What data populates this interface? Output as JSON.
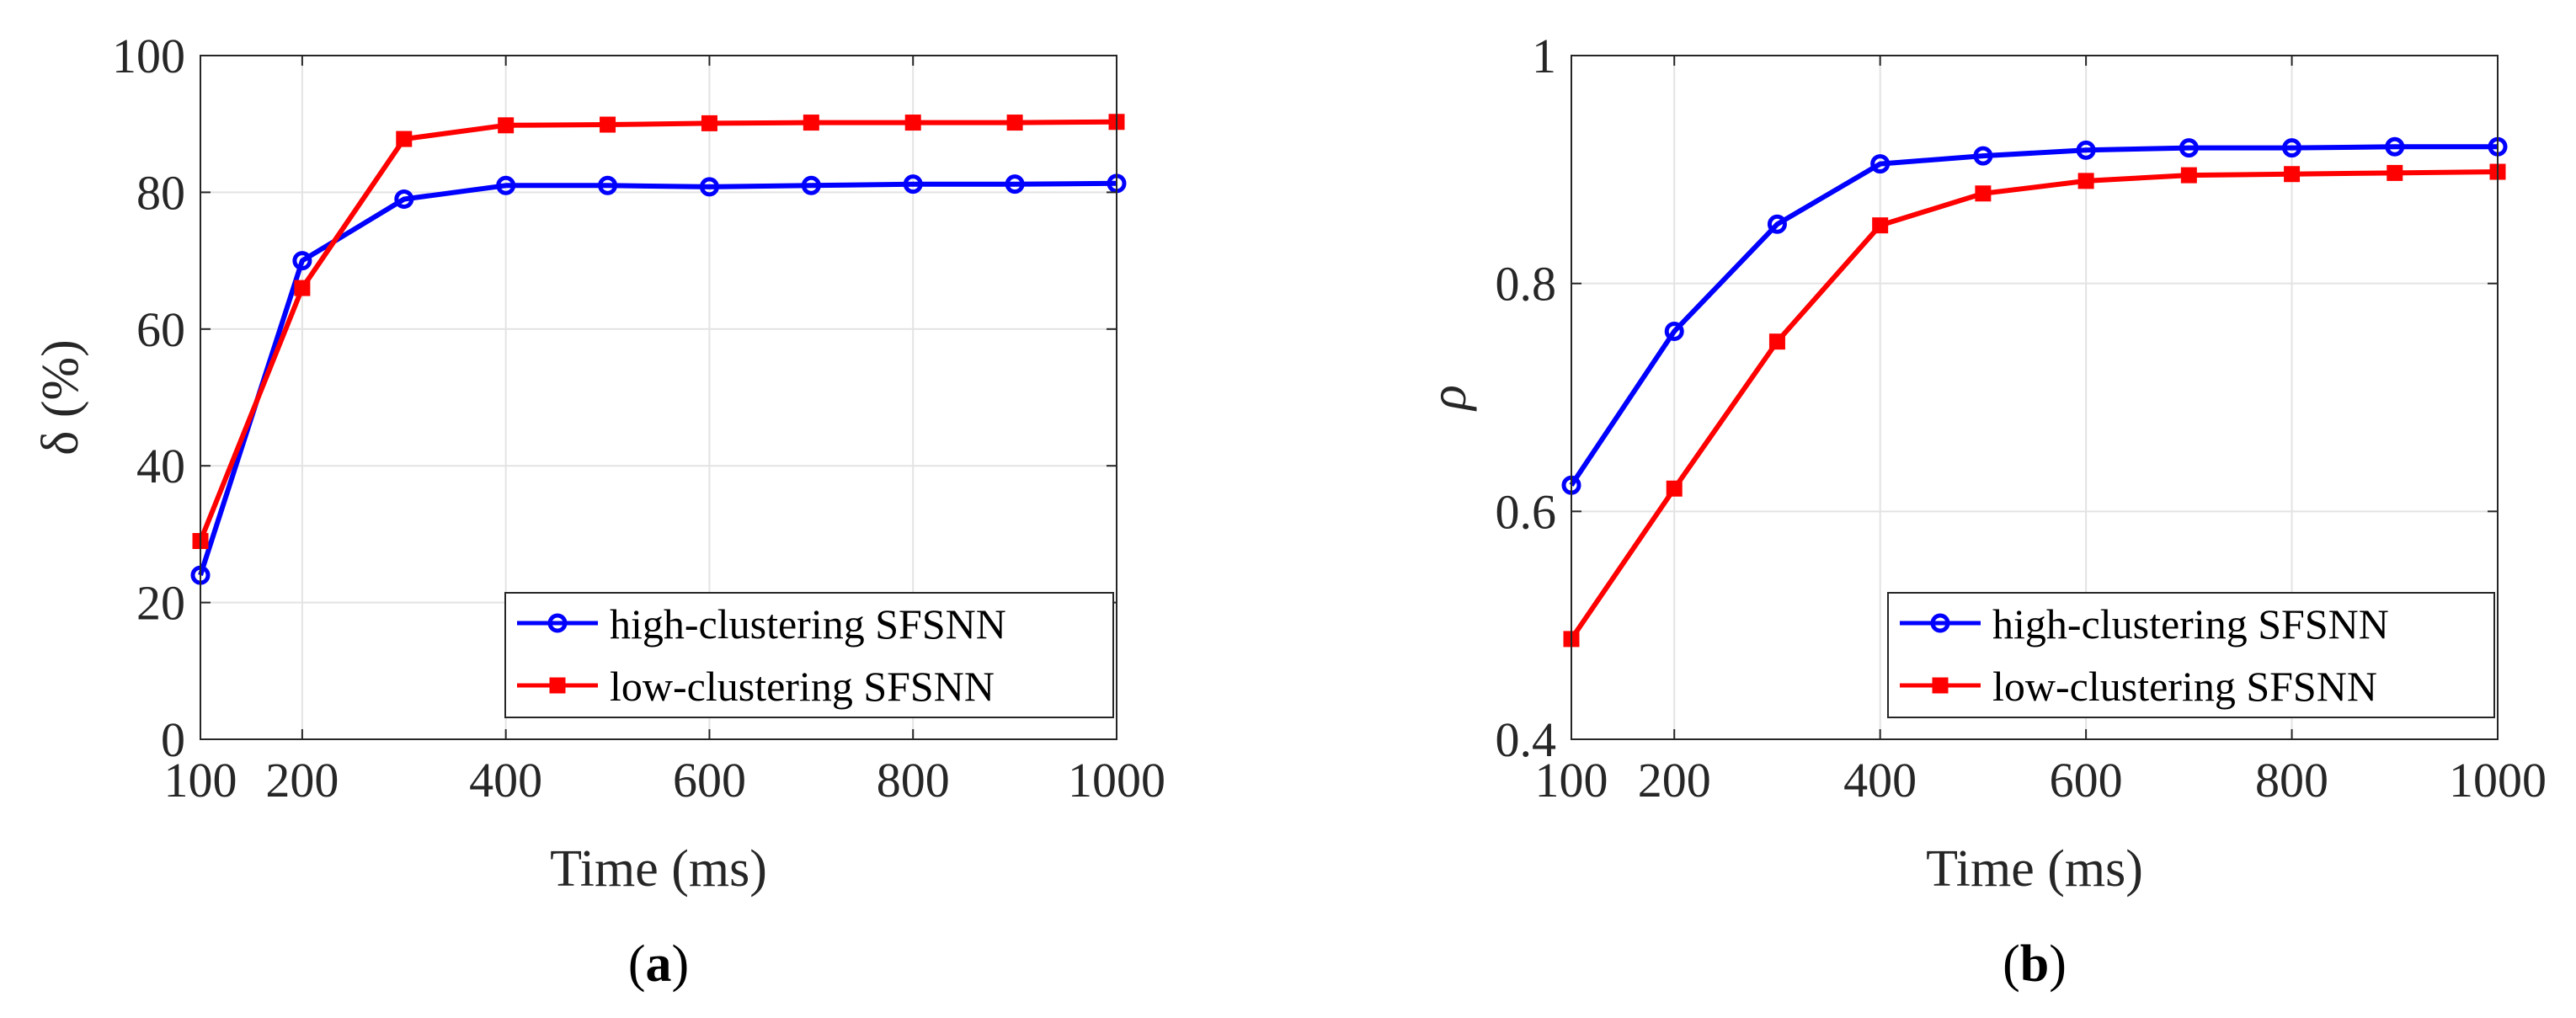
{
  "chart_data": [
    {
      "type": "line",
      "panel_label": "(a)",
      "panel_label_parts": [
        "(",
        "a",
        ")"
      ],
      "xlabel": "Time (ms)",
      "ylabel": "δ (%)",
      "xlim": [
        100,
        1000
      ],
      "ylim": [
        0,
        100
      ],
      "xticks": [
        "100",
        "200",
        "400",
        "600",
        "800",
        "1000"
      ],
      "yticks": [
        "0",
        "20",
        "40",
        "60",
        "80",
        "100"
      ],
      "grid": true,
      "legend_position": "bottom-right",
      "x": [
        100,
        200,
        300,
        400,
        500,
        600,
        700,
        800,
        900,
        1000
      ],
      "series": [
        {
          "name": "high-clustering SFSNN",
          "color": "#0000ff",
          "marker": "circle",
          "values": [
            24,
            70,
            79,
            81,
            81,
            80.8,
            81,
            81.2,
            81.2,
            81.3
          ]
        },
        {
          "name": "low-clustering SFSNN",
          "color": "#ff0000",
          "marker": "square",
          "values": [
            29,
            66,
            87.8,
            89.8,
            89.9,
            90.1,
            90.2,
            90.2,
            90.2,
            90.3
          ]
        }
      ]
    },
    {
      "type": "line",
      "panel_label": "(b)",
      "panel_label_parts": [
        "(",
        "b",
        ")"
      ],
      "xlabel": "Time (ms)",
      "ylabel": "ρ",
      "xlim": [
        100,
        1000
      ],
      "ylim": [
        0.4,
        1
      ],
      "xticks": [
        "100",
        "200",
        "400",
        "600",
        "800",
        "1000"
      ],
      "yticks": [
        "0.4",
        "0.6",
        "0.8",
        "1"
      ],
      "grid": true,
      "legend_position": "bottom-right",
      "x": [
        100,
        200,
        300,
        400,
        500,
        600,
        700,
        800,
        900,
        1000
      ],
      "series": [
        {
          "name": "high-clustering SFSNN",
          "color": "#0000ff",
          "marker": "circle",
          "values": [
            0.623,
            0.758,
            0.852,
            0.905,
            0.912,
            0.917,
            0.919,
            0.919,
            0.92,
            0.92
          ]
        },
        {
          "name": "low-clustering SFSNN",
          "color": "#ff0000",
          "marker": "square",
          "values": [
            0.488,
            0.62,
            0.749,
            0.851,
            0.879,
            0.89,
            0.895,
            0.896,
            0.897,
            0.898
          ]
        }
      ]
    }
  ]
}
